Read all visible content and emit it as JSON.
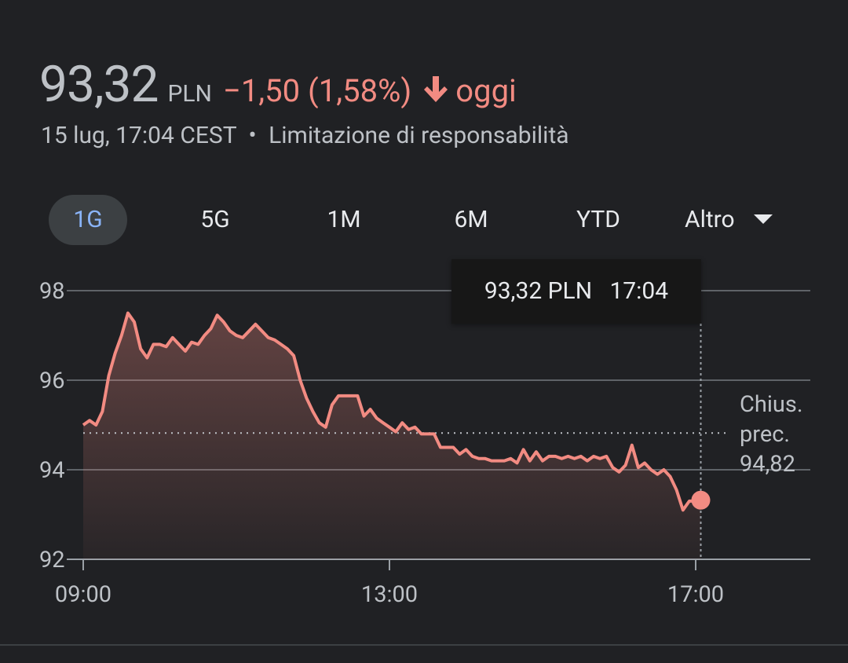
{
  "quote": {
    "price": "93,32",
    "currency": "PLN",
    "change": "−1,50 (1,58%)",
    "period": "oggi",
    "timestamp": "15 lug, 17:04 CEST",
    "separator": "•",
    "disclaimer": "Limitazione di responsabilità",
    "arrow_icon": "arrow-down-icon",
    "negative_color": "#f28b82"
  },
  "tabs": [
    {
      "label": "1G",
      "active": true
    },
    {
      "label": "5G",
      "active": false
    },
    {
      "label": "1M",
      "active": false
    },
    {
      "label": "6M",
      "active": false
    },
    {
      "label": "YTD",
      "active": false
    }
  ],
  "more": {
    "label": "Altro",
    "icon": "caret-down-icon"
  },
  "tooltip": {
    "price": "93,32 PLN",
    "time": "17:04"
  },
  "previous_close": {
    "line1": "Chius.",
    "line2": "prec.",
    "value": "94,82"
  },
  "chart_data": {
    "type": "area",
    "y_ticks": [
      98,
      96,
      94,
      92
    ],
    "y_tick_labels": [
      "98",
      "96",
      "94",
      "92"
    ],
    "x_ticks": [
      "09:00",
      "13:00",
      "17:00"
    ],
    "ylim": [
      92,
      98
    ],
    "x_range": [
      "09:00",
      "18:30"
    ],
    "grid": true,
    "previous_close": 94.82,
    "line_color": "#f28b82",
    "series": [
      {
        "x": [
          "09:00",
          "09:05",
          "09:10",
          "09:15",
          "09:20",
          "09:25",
          "09:30",
          "09:35",
          "09:40",
          "09:45",
          "09:50",
          "09:55",
          "10:00",
          "10:05",
          "10:10",
          "10:15",
          "10:20",
          "10:25",
          "10:30",
          "10:35",
          "10:40",
          "10:45",
          "10:50",
          "10:55",
          "11:00",
          "11:05",
          "11:10",
          "11:15",
          "11:20",
          "11:25",
          "11:30",
          "11:35",
          "11:40",
          "11:45",
          "11:50",
          "11:55",
          "12:00",
          "12:05",
          "12:10",
          "12:15",
          "12:20",
          "12:25",
          "12:30",
          "12:35",
          "12:40",
          "12:45",
          "12:50",
          "12:55",
          "13:00",
          "13:05",
          "13:10",
          "13:15",
          "13:20",
          "13:25",
          "13:30",
          "13:35",
          "13:40",
          "13:45",
          "13:50",
          "13:55",
          "14:00",
          "14:05",
          "14:10",
          "14:15",
          "14:20",
          "14:25",
          "14:30",
          "14:35",
          "14:40",
          "14:45",
          "14:50",
          "14:55",
          "15:00",
          "15:05",
          "15:10",
          "15:15",
          "15:20",
          "15:25",
          "15:30",
          "15:35",
          "15:40",
          "15:45",
          "15:50",
          "15:55",
          "16:00",
          "16:05",
          "16:10",
          "16:15",
          "16:20",
          "16:25",
          "16:30",
          "16:35",
          "16:40",
          "16:45",
          "16:50",
          "16:55",
          "17:00",
          "17:04"
        ],
        "values": [
          95.0,
          95.1,
          95.0,
          95.3,
          96.1,
          96.6,
          97.0,
          97.5,
          97.3,
          96.7,
          96.5,
          96.8,
          96.8,
          96.75,
          96.95,
          96.8,
          96.65,
          96.85,
          96.8,
          97.0,
          97.15,
          97.45,
          97.3,
          97.1,
          97.0,
          96.95,
          97.1,
          97.25,
          97.1,
          96.95,
          96.9,
          96.8,
          96.7,
          96.55,
          96.0,
          95.6,
          95.3,
          95.05,
          94.95,
          95.45,
          95.65,
          95.65,
          95.65,
          95.65,
          95.2,
          95.35,
          95.15,
          95.05,
          94.95,
          94.85,
          95.05,
          94.9,
          94.95,
          94.8,
          94.8,
          94.8,
          94.5,
          94.5,
          94.5,
          94.35,
          94.45,
          94.3,
          94.25,
          94.25,
          94.2,
          94.2,
          94.2,
          94.25,
          94.15,
          94.45,
          94.2,
          94.4,
          94.2,
          94.3,
          94.3,
          94.25,
          94.3,
          94.25,
          94.3,
          94.2,
          94.3,
          94.25,
          94.3,
          94.05,
          93.95,
          94.1,
          94.55,
          94.05,
          94.15,
          94.0,
          93.9,
          94.0,
          93.85,
          93.55,
          93.1,
          93.3,
          93.3,
          93.32
        ]
      }
    ]
  }
}
